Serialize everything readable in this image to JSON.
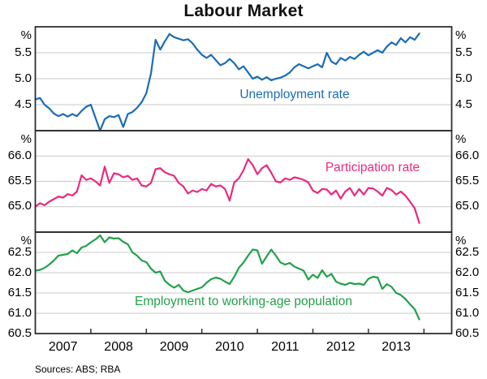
{
  "title": "Labour Market",
  "sources": "Sources: ABS; RBA",
  "style": {
    "grid_color": "#c9c9c9",
    "axis_color": "#2f2f2f",
    "background": "#ffffff"
  },
  "chart_data": {
    "type": "line",
    "x_unit": "month",
    "x_start": "2007-01",
    "x_end": "2013-12",
    "x_axis": {
      "range_years": [
        2007,
        2014.5
      ],
      "tick_years": [
        2008,
        2009,
        2010,
        2011,
        2012,
        2013,
        2014
      ],
      "year_labels": [
        "2007",
        "2008",
        "2009",
        "2010",
        "2011",
        "2012",
        "2013"
      ]
    },
    "panels": [
      {
        "label": "Unemployment rate",
        "unit": "%",
        "color": "#1b6cb5",
        "ylim": [
          4.0,
          6.0
        ],
        "ytick_values": [
          5.5,
          5.0,
          4.5
        ],
        "ytick_labels": [
          "5.5",
          "5.0",
          "4.5"
        ],
        "values": [
          4.6,
          4.63,
          4.5,
          4.43,
          4.33,
          4.28,
          4.32,
          4.27,
          4.32,
          4.28,
          4.38,
          4.46,
          4.5,
          4.25,
          4.0,
          4.22,
          4.28,
          4.26,
          4.3,
          4.07,
          4.32,
          4.36,
          4.44,
          4.55,
          4.72,
          5.1,
          5.75,
          5.56,
          5.72,
          5.86,
          5.8,
          5.77,
          5.74,
          5.76,
          5.68,
          5.56,
          5.46,
          5.4,
          5.46,
          5.36,
          5.26,
          5.3,
          5.38,
          5.3,
          5.18,
          5.24,
          5.12,
          5.0,
          5.04,
          4.98,
          5.03,
          4.97,
          5.0,
          5.02,
          5.06,
          5.12,
          5.22,
          5.28,
          5.24,
          5.2,
          5.24,
          5.28,
          5.22,
          5.5,
          5.33,
          5.28,
          5.4,
          5.35,
          5.42,
          5.38,
          5.46,
          5.52,
          5.45,
          5.5,
          5.55,
          5.5,
          5.62,
          5.7,
          5.65,
          5.78,
          5.7,
          5.8,
          5.75,
          5.87
        ]
      },
      {
        "label": "Participation rate",
        "unit": "%",
        "color": "#ea2a7d",
        "ylim": [
          64.5,
          66.5
        ],
        "ytick_values": [
          66.0,
          65.5,
          65.0
        ],
        "ytick_labels": [
          "66.0",
          "65.5",
          "65.0"
        ],
        "values": [
          65.0,
          65.07,
          65.03,
          65.1,
          65.15,
          65.2,
          65.18,
          65.25,
          65.22,
          65.3,
          65.62,
          65.53,
          65.56,
          65.5,
          65.42,
          65.79,
          65.47,
          65.66,
          65.64,
          65.58,
          65.61,
          65.53,
          65.56,
          65.42,
          65.4,
          65.47,
          65.74,
          65.76,
          65.68,
          65.64,
          65.61,
          65.47,
          65.4,
          65.26,
          65.32,
          65.29,
          65.35,
          65.32,
          65.45,
          65.4,
          65.42,
          65.35,
          65.12,
          65.48,
          65.56,
          65.72,
          65.94,
          65.82,
          65.64,
          65.76,
          65.82,
          65.67,
          65.5,
          65.48,
          65.56,
          65.53,
          65.58,
          65.56,
          65.53,
          65.48,
          65.32,
          65.27,
          65.35,
          65.34,
          65.24,
          65.32,
          65.16,
          65.3,
          65.37,
          65.22,
          65.35,
          65.24,
          65.37,
          65.36,
          65.3,
          65.22,
          65.37,
          65.33,
          65.24,
          65.3,
          65.22,
          65.1,
          64.97,
          64.68
        ]
      },
      {
        "label": "Employment to working-age population",
        "unit": "%",
        "color": "#22a14a",
        "ylim": [
          60.5,
          63.0
        ],
        "ytick_values": [
          62.5,
          62.0,
          61.5,
          61.0,
          60.5
        ],
        "ytick_labels": [
          "62.5",
          "62.0",
          "61.5",
          "61.0",
          "60.5"
        ],
        "values": [
          62.05,
          62.07,
          62.12,
          62.2,
          62.3,
          62.42,
          62.44,
          62.46,
          62.55,
          62.48,
          62.62,
          62.66,
          62.75,
          62.82,
          62.92,
          62.75,
          62.87,
          62.84,
          62.85,
          62.76,
          62.7,
          62.5,
          62.42,
          62.3,
          62.26,
          62.1,
          62.0,
          62.03,
          61.8,
          61.7,
          61.63,
          61.7,
          61.56,
          61.52,
          61.56,
          61.6,
          61.64,
          61.75,
          61.84,
          61.88,
          61.85,
          61.78,
          61.72,
          61.9,
          62.12,
          62.25,
          62.42,
          62.57,
          62.55,
          62.22,
          62.4,
          62.57,
          62.42,
          62.25,
          62.2,
          62.24,
          62.15,
          62.1,
          62.05,
          61.83,
          61.95,
          61.87,
          62.06,
          61.9,
          61.97,
          61.78,
          61.73,
          61.7,
          61.75,
          61.72,
          61.73,
          61.7,
          61.85,
          61.9,
          61.88,
          61.6,
          61.72,
          61.65,
          61.5,
          61.45,
          61.35,
          61.22,
          61.1,
          60.85
        ]
      }
    ],
    "series_label_positions": [
      {
        "x": 363,
        "y": 116
      },
      {
        "x": 459,
        "y": 206
      },
      {
        "x": 300,
        "y": 371
      }
    ],
    "legend_position": "in-panel-text",
    "grid": true
  }
}
